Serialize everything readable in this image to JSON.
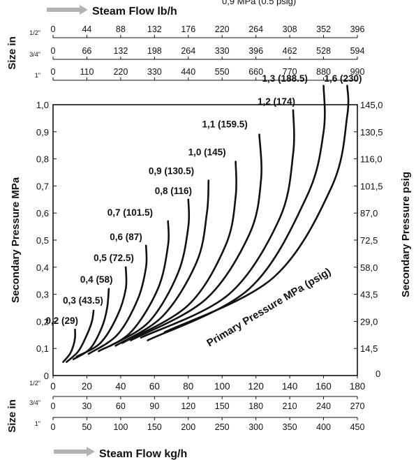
{
  "header_clipped_text": "0,9 MPa (0.5 psig)",
  "flow_lbh_label": "Steam Flow lb/h",
  "flow_kgh_label": "Steam Flow kg/h",
  "size_in_label": "Size in",
  "lbh_scales": [
    {
      "size": "1/2\"",
      "ticks": [
        "0",
        "44",
        "88",
        "132",
        "176",
        "220",
        "264",
        "308",
        "352",
        "396"
      ]
    },
    {
      "size": "3/4\"",
      "ticks": [
        "0",
        "66",
        "132",
        "198",
        "264",
        "330",
        "396",
        "462",
        "528",
        "594"
      ]
    },
    {
      "size": "1\"",
      "ticks": [
        "0",
        "110",
        "220",
        "330",
        "440",
        "550",
        "660",
        "770",
        "880",
        "990"
      ]
    }
  ],
  "kgh_scales": [
    {
      "size": "1/2\"",
      "ticks": [
        "0",
        "20",
        "40",
        "60",
        "80",
        "100",
        "120",
        "140",
        "160",
        "180"
      ]
    },
    {
      "size": "3/4\"",
      "ticks": [
        "0",
        "30",
        "60",
        "90",
        "120",
        "150",
        "180",
        "210",
        "240",
        "270"
      ]
    },
    {
      "size": "1\"",
      "ticks": [
        "0",
        "50",
        "100",
        "150",
        "200",
        "250",
        "300",
        "350",
        "400",
        "450"
      ]
    }
  ],
  "left_axis_title": "Secondary Pressure MPa",
  "left_axis_ticks": [
    "0",
    "0,1",
    "0,2",
    "0,3",
    "0,4",
    "0,5",
    "0,6",
    "0,7",
    "0,8",
    "0,9",
    "1,0"
  ],
  "right_axis_title": "Secondary Pressure psig",
  "right_axis_ticks": [
    "0",
    "14,5",
    "29,0",
    "43,5",
    "58,0",
    "72,5",
    "87,0",
    "101,5",
    "116,0",
    "130,5",
    "145,0"
  ],
  "curve_family_label": "Primary Pressure MPa (psig)",
  "colors": {
    "ink": "#111111",
    "arrow": "#b3b3b3",
    "background": "#ffffff"
  },
  "chart_data": {
    "type": "line",
    "title": "",
    "xlabel": "Steam Flow kg/h",
    "ylabel": "Secondary Pressure MPa",
    "y2label": "Secondary Pressure psig",
    "xlim": [
      0,
      180
    ],
    "ylim": [
      0,
      1.0
    ],
    "grid": false,
    "series": [
      {
        "name": "0,2 (29)",
        "x": [
          6,
          10,
          12,
          13,
          13
        ],
        "y": [
          0.05,
          0.08,
          0.11,
          0.14,
          0.17
        ]
      },
      {
        "name": "0,3 (43.5)",
        "x": [
          8,
          15,
          20,
          23,
          24
        ],
        "y": [
          0.05,
          0.09,
          0.15,
          0.2,
          0.24
        ]
      },
      {
        "name": "0,4 (58)",
        "x": [
          12,
          22,
          29,
          32,
          33
        ],
        "y": [
          0.06,
          0.1,
          0.18,
          0.25,
          0.32
        ]
      },
      {
        "name": "0,5 (72.5)",
        "x": [
          14,
          28,
          38,
          43,
          43
        ],
        "y": [
          0.07,
          0.12,
          0.22,
          0.32,
          0.4
        ]
      },
      {
        "name": "0,6 (87)",
        "x": [
          21,
          38,
          50,
          55,
          55
        ],
        "y": [
          0.08,
          0.15,
          0.28,
          0.4,
          0.48
        ]
      },
      {
        "name": "0,7 (101.5)",
        "x": [
          27,
          46,
          62,
          68,
          68
        ],
        "y": [
          0.09,
          0.16,
          0.32,
          0.48,
          0.57
        ]
      },
      {
        "name": "0,8 (116)",
        "x": [
          34,
          57,
          74,
          80,
          80
        ],
        "y": [
          0.11,
          0.2,
          0.38,
          0.55,
          0.65
        ]
      },
      {
        "name": "0,9 (130.5)",
        "x": [
          37,
          65,
          85,
          91,
          92
        ],
        "y": [
          0.11,
          0.22,
          0.42,
          0.6,
          0.72
        ]
      },
      {
        "name": "1,0 (145)",
        "x": [
          41,
          80,
          102,
          108,
          108
        ],
        "y": [
          0.12,
          0.26,
          0.48,
          0.66,
          0.79
        ]
      },
      {
        "name": "1,1 (159.5)",
        "x": [
          46,
          90,
          116,
          123,
          122
        ],
        "y": [
          0.13,
          0.28,
          0.52,
          0.72,
          0.89
        ]
      },
      {
        "name": "1,2 (174)",
        "x": [
          52,
          104,
          134,
          142,
          142
        ],
        "y": [
          0.14,
          0.3,
          0.58,
          0.82,
          0.98
        ]
      },
      {
        "name": "1,3 (188.5)",
        "x": [
          56,
          116,
          150,
          160,
          160
        ],
        "y": [
          0.13,
          0.32,
          0.66,
          0.9,
          1.07
        ]
      },
      {
        "name": "1,6 (230)",
        "x": [
          66,
          130,
          165,
          174,
          174
        ],
        "y": [
          0.16,
          0.36,
          0.7,
          0.96,
          1.07
        ]
      }
    ]
  }
}
